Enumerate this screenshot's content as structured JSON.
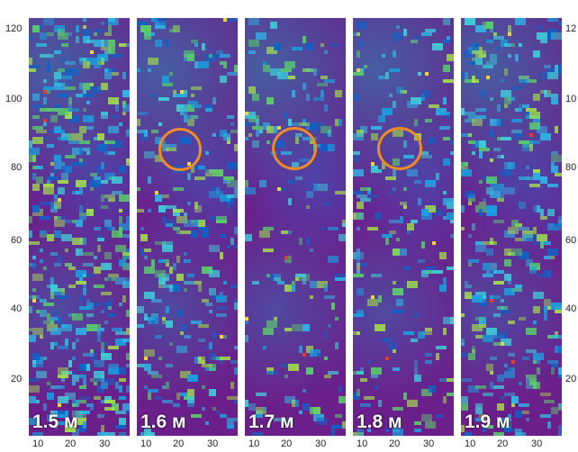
{
  "y_axis": {
    "left_ticks": [
      "120",
      "100",
      "80",
      "60",
      "40",
      "20"
    ],
    "right_ticks": [
      "12",
      "10",
      "80",
      "60",
      "40",
      "20"
    ]
  },
  "x_axis": {
    "ticks": [
      "10",
      "20",
      "30"
    ]
  },
  "panels": [
    {
      "label": "1.5 м",
      "has_marker": false
    },
    {
      "label": "1.6 м",
      "has_marker": true
    },
    {
      "label": "1.7 м",
      "has_marker": true
    },
    {
      "label": "1.8 м",
      "has_marker": true
    },
    {
      "label": "1.9 м",
      "has_marker": false
    }
  ],
  "colors": {
    "background": "#6b1f8a",
    "marker": "#f08a24"
  }
}
